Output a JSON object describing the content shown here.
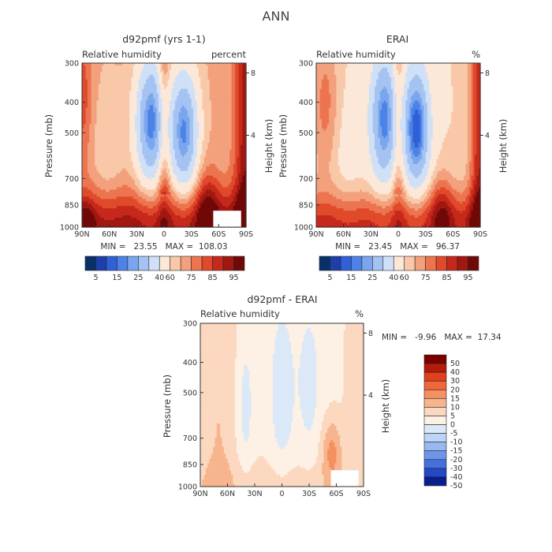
{
  "figure_title": "ANN",
  "chart_data": [
    {
      "type": "heatmap",
      "title": "d92pmf (yrs 1-1)",
      "subtitle_left": "Relative humidity",
      "subtitle_right": "percent",
      "xlabel": "",
      "ylabel": "Pressure (mb)",
      "ylabel_right": "Height (km)",
      "x_ticks": [
        "90N",
        "60N",
        "30N",
        "0",
        "30S",
        "60S",
        "90S"
      ],
      "y_ticks": [
        "300",
        "400",
        "500",
        "700",
        "850",
        "1000"
      ],
      "y_ticks_right": [
        "8",
        "4"
      ],
      "stats": "MIN =   23.55   MAX =  108.03",
      "colorbar_labels": [
        "5",
        "15",
        "25",
        "40",
        "60",
        "75",
        "85",
        "95"
      ],
      "value_range": [
        23.55,
        108.03
      ]
    },
    {
      "type": "heatmap",
      "title": "ERAI",
      "subtitle_left": "Relative humidity",
      "subtitle_right": "%",
      "xlabel": "",
      "ylabel": "Pressure (mb)",
      "ylabel_right": "Height (km)",
      "x_ticks": [
        "90N",
        "60N",
        "30N",
        "0",
        "30S",
        "60S",
        "90S"
      ],
      "y_ticks": [
        "300",
        "400",
        "500",
        "700",
        "850",
        "1000"
      ],
      "y_ticks_right": [
        "8",
        "4"
      ],
      "stats": "MIN =   23.45   MAX =   96.37",
      "colorbar_labels": [
        "5",
        "15",
        "25",
        "40",
        "60",
        "75",
        "85",
        "95"
      ],
      "value_range": [
        23.45,
        96.37
      ]
    },
    {
      "type": "heatmap",
      "title": "d92pmf - ERAI",
      "subtitle_left": "Relative humidity",
      "subtitle_right": "%",
      "xlabel": "",
      "ylabel": "Pressure (mb)",
      "ylabel_right": "Height (km)",
      "x_ticks": [
        "90N",
        "60N",
        "30N",
        "0",
        "30S",
        "60S",
        "90S"
      ],
      "y_ticks": [
        "300",
        "400",
        "500",
        "700",
        "850",
        "1000"
      ],
      "y_ticks_right": [
        "8",
        "4"
      ],
      "stats": "MIN =   -9.96   MAX =  17.34",
      "colorbar_labels": [
        "50",
        "40",
        "30",
        "20",
        "15",
        "10",
        "5",
        "0",
        "-5",
        "-10",
        "-15",
        "-20",
        "-30",
        "-40",
        "-50"
      ],
      "value_range": [
        -9.96,
        17.34
      ]
    }
  ],
  "colors": {
    "rh_scale": [
      "#08306b",
      "#1f3fa8",
      "#3060d8",
      "#4d83e6",
      "#7aa6ee",
      "#a4c3f2",
      "#cfe0f7",
      "#fbe8d8",
      "#f8c8a8",
      "#f3a07c",
      "#ec7550",
      "#e04a2b",
      "#c6291c",
      "#a01810",
      "#700808"
    ],
    "diff_scale": [
      "#7a0000",
      "#b51a0a",
      "#e0401c",
      "#f0683a",
      "#f59060",
      "#f7b58e",
      "#fbd8bf",
      "#fdf0e4",
      "#dbe8f8",
      "#bcd4f5",
      "#98b8f0",
      "#6e96e8",
      "#4670dd",
      "#2348c8",
      "#0a1e8c"
    ]
  }
}
